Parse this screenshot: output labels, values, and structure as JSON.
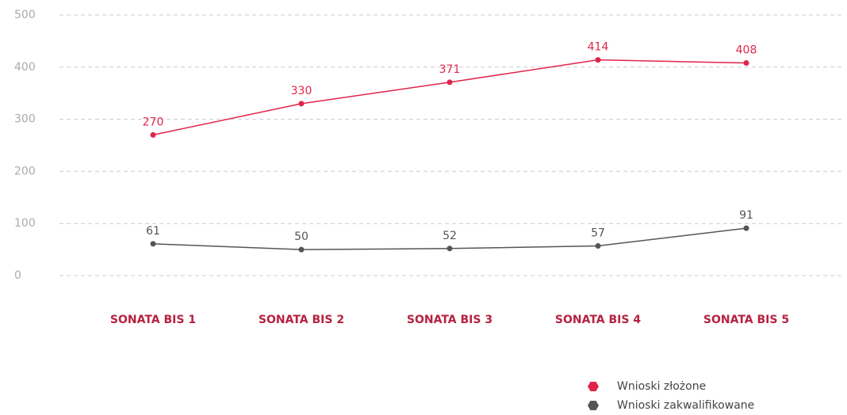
{
  "chart_data": {
    "type": "line",
    "categories": [
      "SONATA BIS 1",
      "SONATA BIS 2",
      "SONATA BIS 3",
      "SONATA BIS 4",
      "SONATA BIS 5"
    ],
    "series": [
      {
        "name": "Wnioski złożone",
        "color": "#e0254a",
        "values": [
          270,
          330,
          371,
          414,
          408
        ]
      },
      {
        "name": "Wnioski zakwalifikowane",
        "color": "#555555",
        "values": [
          61,
          50,
          52,
          57,
          91
        ]
      }
    ],
    "ylim": [
      0,
      500
    ],
    "yticks": [
      0,
      100,
      200,
      300,
      400,
      500
    ],
    "grid": true,
    "legend": "bottom-right"
  }
}
